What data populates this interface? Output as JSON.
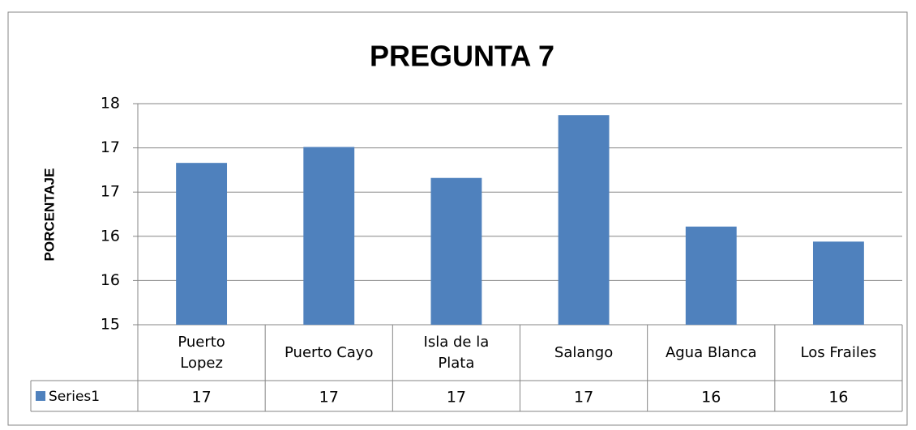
{
  "chart_data": {
    "type": "bar",
    "title": "PREGUNTA 7",
    "y_label": "PORCENTAJE",
    "categories": [
      "Puerto Lopez",
      "Puerto Cayo",
      "Isla de la Plata",
      "Salango",
      "Agua Blanca",
      "Los Frailes"
    ],
    "series": [
      {
        "name": "Series1",
        "color": "#4f81bd",
        "values": [
          16.83,
          17.01,
          16.66,
          17.37,
          16.11,
          15.94
        ],
        "value_labels": [
          "17",
          "17",
          "17",
          "17",
          "16",
          "16"
        ]
      }
    ],
    "ylim": [
      15,
      17.5
    ],
    "yticks": [
      15,
      {
        "value": 15.5,
        "label": "16"
      },
      16,
      {
        "value": 16.5,
        "label": "17"
      },
      17,
      {
        "value": 17.5,
        "label": "18"
      }
    ],
    "grid": true,
    "data_table": true
  }
}
